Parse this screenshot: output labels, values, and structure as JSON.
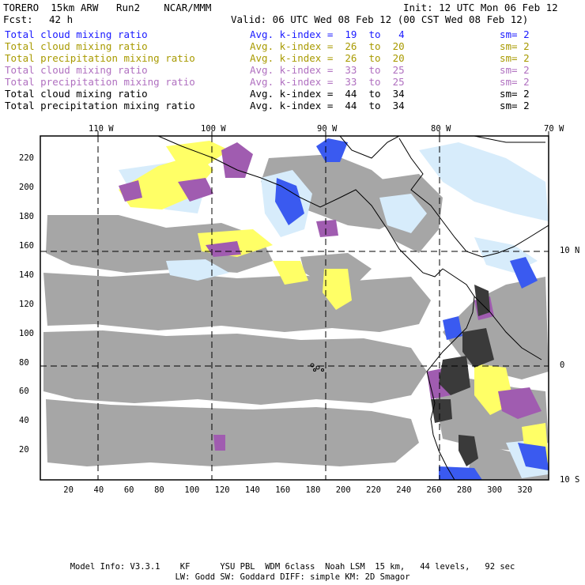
{
  "header": {
    "model": "TORERO  15km ARW   Run2    NCAR/MMM",
    "init": "Init: 12 UTC Mon 06 Feb 12",
    "fcst_label": "Fcst:",
    "fcst_value": "42 h",
    "valid": "Valid: 06 UTC Wed 08 Feb 12 (00 CST Wed 08 Feb 12)"
  },
  "legend": [
    {
      "field": "Total cloud mixing ratio",
      "kindex": "Avg. k-index =  19  to   4",
      "sm": "sm= 2",
      "color": "#1a1aff"
    },
    {
      "field": "Total cloud mixing ratio",
      "kindex": "Avg. k-index =  26  to  20",
      "sm": "sm= 2",
      "color": "#a89a00"
    },
    {
      "field": "Total precipitation mixing ratio",
      "kindex": "Avg. k-index =  26  to  20",
      "sm": "sm= 2",
      "color": "#a89a00"
    },
    {
      "field": "Total cloud mixing ratio",
      "kindex": "Avg. k-index =  33  to  25",
      "sm": "sm= 2",
      "color": "#b070c0"
    },
    {
      "field": "Total precipitation mixing ratio",
      "kindex": "Avg. k-index =  33  to  25",
      "sm": "sm= 2",
      "color": "#b070c0"
    },
    {
      "field": "Total cloud mixing ratio",
      "kindex": "Avg. k-index =  44  to  34",
      "sm": "sm= 2",
      "color": "#000000"
    },
    {
      "field": "Total precipitation mixing ratio",
      "kindex": "Avg. k-index =  44  to  34",
      "sm": "sm= 2",
      "color": "#000000"
    }
  ],
  "map": {
    "lon_labels": [
      "110 W",
      "100 W",
      "90 W",
      "80 W",
      "70 W"
    ],
    "lat_labels": [
      "10 N",
      "0",
      "10 S"
    ],
    "y_ticks": [
      "220",
      "200",
      "180",
      "160",
      "140",
      "120",
      "100",
      "80",
      "60",
      "40",
      "20"
    ],
    "x_ticks": [
      "20",
      "40",
      "60",
      "80",
      "100",
      "120",
      "140",
      "160",
      "180",
      "200",
      "220",
      "240",
      "260",
      "280",
      "300",
      "320"
    ],
    "colors": {
      "gray": "#a6a6a6",
      "yellow": "#ffff66",
      "purple": "#a05cb0",
      "light_blue": "#d7ecfb",
      "blue": "#3a5af0",
      "dark_gray": "#3a3a3a"
    }
  },
  "footer": {
    "line1": "Model Info: V3.3.1    KF      YSU PBL  WDM 6class  Noah LSM  15 km,   44 levels,   92 sec",
    "line2": "LW: Godd SW: Goddard DIFF: simple KM: 2D Smagor"
  }
}
